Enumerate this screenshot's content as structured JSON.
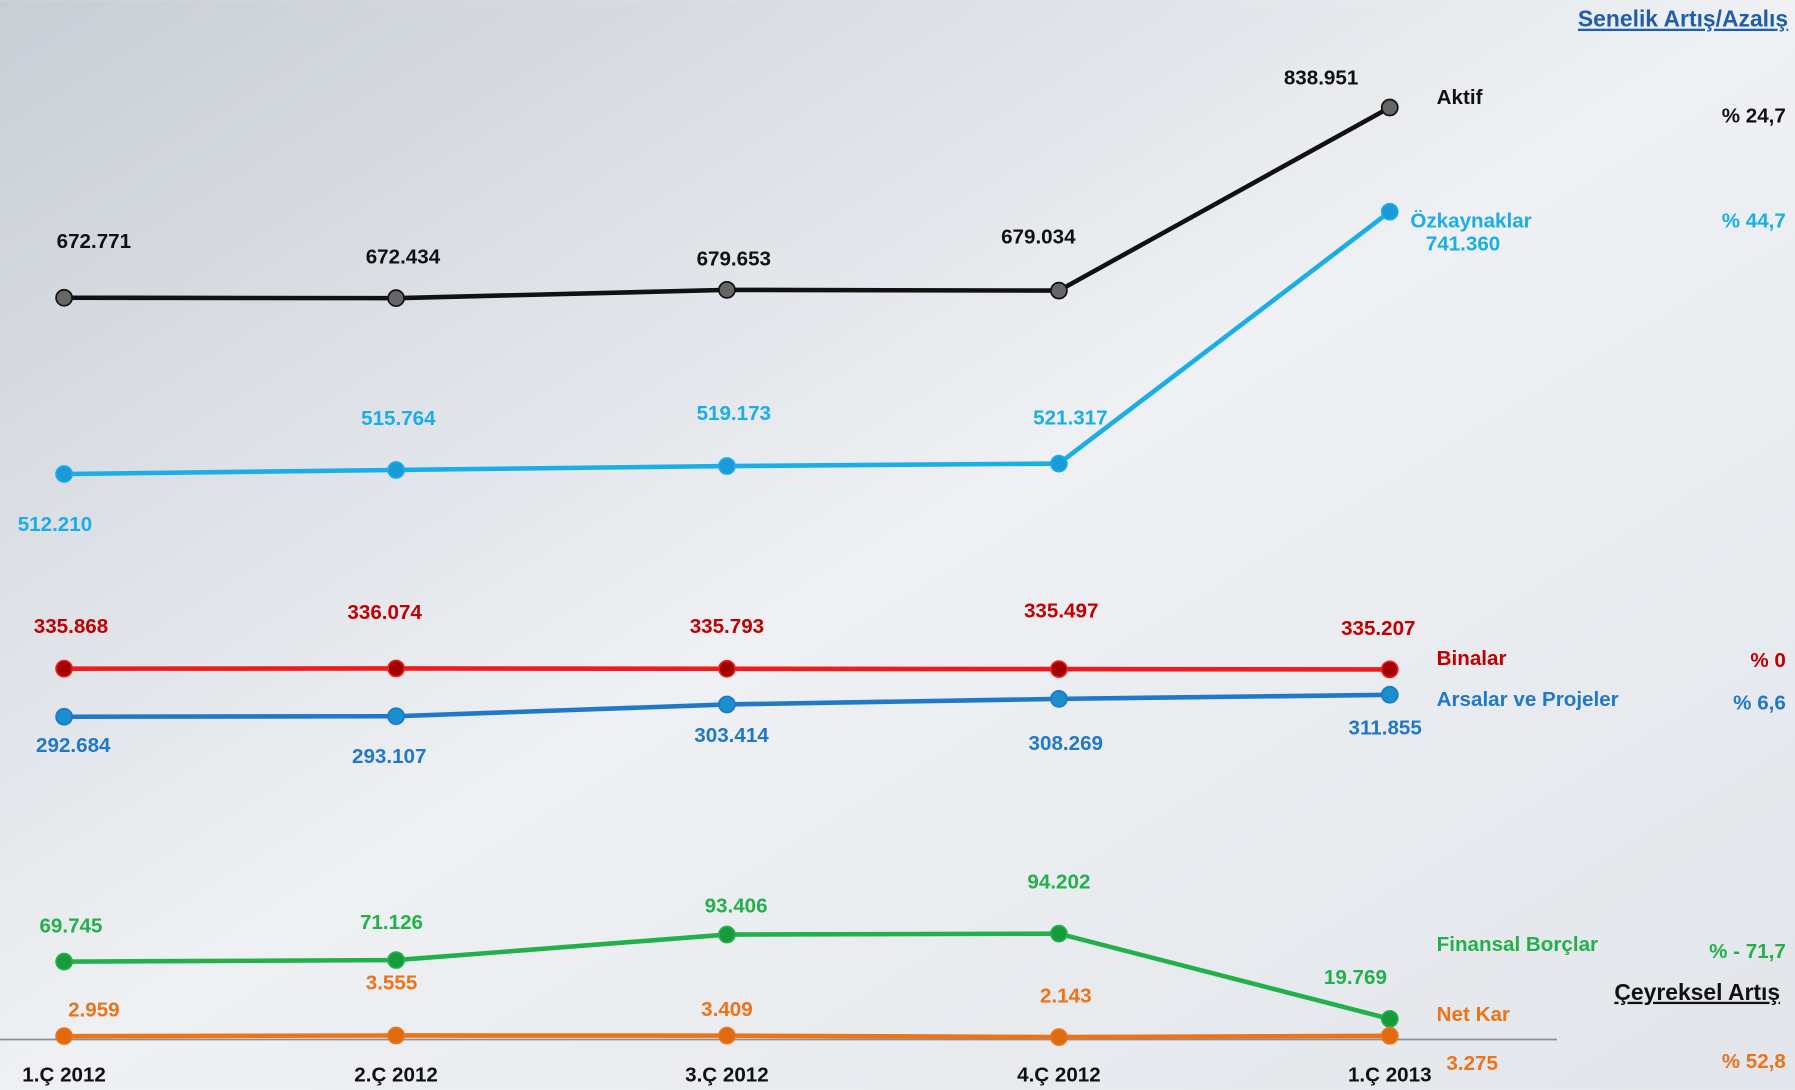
{
  "chart_data": {
    "type": "line",
    "header": "Senelik Artış/Azalış",
    "quarterly_header": "Çeyreksel Artış",
    "categories": [
      "1.Ç 2012",
      "2.Ç 2012",
      "3.Ç 2012",
      "4.Ç 2012",
      "1.Ç 2013"
    ],
    "series": [
      {
        "name": "Aktif",
        "color": "#111111",
        "marker": "#666666",
        "label_color": "#111111",
        "values": [
          672771,
          672434,
          679653,
          679034,
          838951
        ],
        "value_labels": [
          "672.771",
          "672.434",
          "679.653",
          "679.034",
          "838.951"
        ],
        "change": "% 24,7"
      },
      {
        "name": "Özkaynaklar",
        "color": "#19aee8",
        "marker": "#1a9ad6",
        "label_color": "#19aee8",
        "values": [
          512210,
          515764,
          519173,
          521317,
          741360
        ],
        "value_labels": [
          "512.210",
          "515.764",
          "519.173",
          "521.317",
          "741.360"
        ],
        "change": "% 44,7"
      },
      {
        "name": "Binalar",
        "color": "#ee1c1c",
        "marker": "#a00000",
        "label_color": "#c00000",
        "values": [
          335868,
          336074,
          335793,
          335497,
          335207
        ],
        "value_labels": [
          "335.868",
          "336.074",
          "335.793",
          "335.497",
          "335.207"
        ],
        "change": "% 0"
      },
      {
        "name": "Arsalar ve Projeler",
        "color": "#1f78c8",
        "marker": "#1a8fd0",
        "label_color": "#1f78c8",
        "values": [
          292684,
          293107,
          303414,
          308269,
          311855
        ],
        "value_labels": [
          "292.684",
          "293.107",
          "303.414",
          "308.269",
          "311.855"
        ],
        "change": "% 6,6"
      },
      {
        "name": "Finansal Borçlar",
        "color": "#22b04b",
        "marker": "#159a3c",
        "label_color": "#22b04b",
        "values": [
          69745,
          71126,
          93406,
          94202,
          19769
        ],
        "value_labels": [
          "69.745",
          "71.126",
          "93.406",
          "94.202",
          "19.769"
        ],
        "change": "% - 71,7"
      },
      {
        "name": "Net Kar",
        "color": "#ec7318",
        "marker": "#e06a10",
        "label_color": "#ec7318",
        "values": [
          2959,
          3555,
          3409,
          2143,
          3275
        ],
        "value_labels": [
          "2.959",
          "3.555",
          "3.409",
          "2.143",
          "3.275"
        ],
        "change": "% 52,8"
      }
    ]
  }
}
